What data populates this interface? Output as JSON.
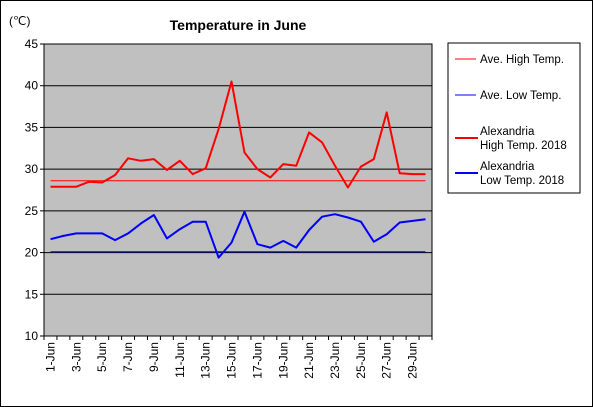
{
  "chart_data": {
    "type": "line",
    "title": "Temperature in June",
    "ylabel": "(℃)",
    "xlabel": "",
    "ylim": [
      10,
      45
    ],
    "yticks": [
      10,
      15,
      20,
      25,
      30,
      35,
      40,
      45
    ],
    "grid": true,
    "legend_position": "right",
    "plot_background": "#c0c0c0",
    "x": [
      "1-Jun",
      "2-Jun",
      "3-Jun",
      "4-Jun",
      "5-Jun",
      "6-Jun",
      "7-Jun",
      "8-Jun",
      "9-Jun",
      "10-Jun",
      "11-Jun",
      "12-Jun",
      "13-Jun",
      "14-Jun",
      "15-Jun",
      "16-Jun",
      "17-Jun",
      "18-Jun",
      "19-Jun",
      "20-Jun",
      "21-Jun",
      "22-Jun",
      "23-Jun",
      "24-Jun",
      "25-Jun",
      "26-Jun",
      "27-Jun",
      "28-Jun",
      "29-Jun",
      "30-Jun"
    ],
    "x_tick_labels": [
      "1-Jun",
      "3-Jun",
      "5-Jun",
      "7-Jun",
      "9-Jun",
      "11-Jun",
      "13-Jun",
      "15-Jun",
      "17-Jun",
      "19-Jun",
      "21-Jun",
      "23-Jun",
      "25-Jun",
      "27-Jun",
      "29-Jun"
    ],
    "series": [
      {
        "name": "Ave. High Temp.",
        "color": "#ff0000",
        "thick": false,
        "values": [
          28.6,
          28.6,
          28.6,
          28.6,
          28.6,
          28.6,
          28.6,
          28.6,
          28.6,
          28.6,
          28.6,
          28.6,
          28.6,
          28.6,
          28.6,
          28.6,
          28.6,
          28.6,
          28.6,
          28.6,
          28.6,
          28.6,
          28.6,
          28.6,
          28.6,
          28.6,
          28.6,
          28.6,
          28.6,
          28.6
        ]
      },
      {
        "name": "Ave. Low Temp.",
        "color": "#0000ff",
        "thick": false,
        "values": [
          20.1,
          20.1,
          20.1,
          20.1,
          20.1,
          20.1,
          20.1,
          20.1,
          20.1,
          20.1,
          20.1,
          20.1,
          20.1,
          20.1,
          20.1,
          20.1,
          20.1,
          20.1,
          20.1,
          20.1,
          20.1,
          20.1,
          20.1,
          20.1,
          20.1,
          20.1,
          20.1,
          20.1,
          20.1,
          20.1
        ]
      },
      {
        "name": "Alexandria High Temp. 2018",
        "legend_lines": [
          "Alexandria",
          "High Temp. 2018"
        ],
        "color": "#ff0000",
        "thick": true,
        "values": [
          27.9,
          27.9,
          27.9,
          28.5,
          28.4,
          29.3,
          31.3,
          31.0,
          31.2,
          29.9,
          31.0,
          29.4,
          30.1,
          34.8,
          40.5,
          32.0,
          30.0,
          29.0,
          30.6,
          30.4,
          34.4,
          33.2,
          30.4,
          27.8,
          30.3,
          31.2,
          36.8,
          29.5,
          29.4,
          29.4
        ]
      },
      {
        "name": "Alexandria Low Temp. 2018",
        "legend_lines": [
          "Alexandria",
          "Low Temp. 2018"
        ],
        "color": "#0000ff",
        "thick": true,
        "values": [
          21.6,
          22.0,
          22.3,
          22.3,
          22.3,
          21.5,
          22.3,
          23.5,
          24.5,
          21.7,
          22.8,
          23.7,
          23.7,
          19.4,
          21.2,
          24.9,
          21.0,
          20.6,
          21.4,
          20.6,
          22.7,
          24.3,
          24.6,
          24.2,
          23.7,
          21.3,
          22.2,
          23.6,
          23.8,
          24.0
        ]
      }
    ]
  }
}
